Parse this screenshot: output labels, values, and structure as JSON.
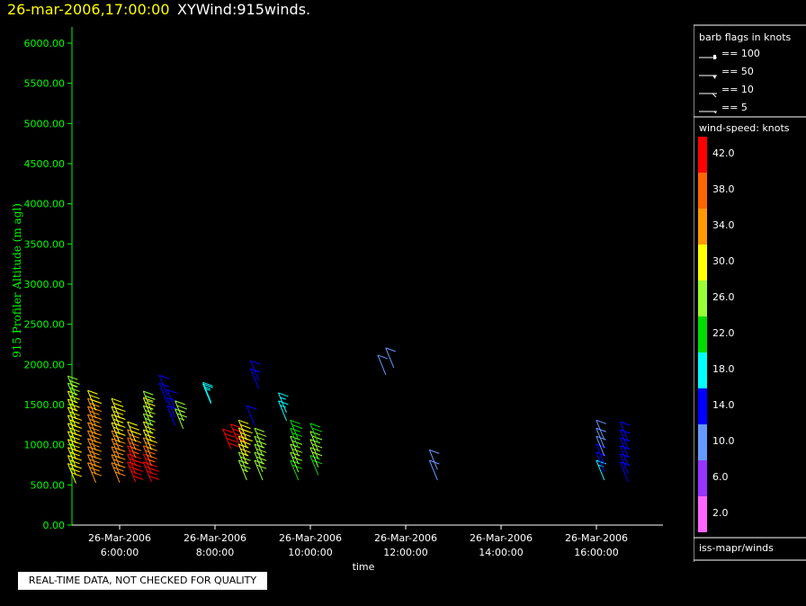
{
  "header": {
    "datetime": "26-mar-2006,17:00:00",
    "product": "XYWind:915winds."
  },
  "note": "REAL-TIME DATA, NOT CHECKED FOR QUALITY",
  "source_label": "iss-mapr/winds",
  "colors": {
    "background": "#000000",
    "axis_text": "#00ff00",
    "title_time": "#ffff00",
    "text": "#ffffff"
  },
  "barb_legend": {
    "title": "barb flags in knots",
    "items": [
      "== 100",
      "== 50",
      "== 10",
      "== 5"
    ]
  },
  "speed_legend": {
    "title": "wind-speed: knots",
    "bins": [
      {
        "label": "42.0",
        "color": "#ff0000"
      },
      {
        "label": "38.0",
        "color": "#ff6600"
      },
      {
        "label": "34.0",
        "color": "#ff9900"
      },
      {
        "label": "30.0",
        "color": "#ffff00"
      },
      {
        "label": "26.0",
        "color": "#99ff33"
      },
      {
        "label": "22.0",
        "color": "#00dd00"
      },
      {
        "label": "18.0",
        "color": "#00ffff"
      },
      {
        "label": "14.0",
        "color": "#0000ff"
      },
      {
        "label": "10.0",
        "color": "#6699ff"
      },
      {
        "label": "6.0",
        "color": "#9933ff"
      },
      {
        "label": "2.0",
        "color": "#ff66ff"
      }
    ]
  },
  "chart_data": {
    "type": "scatter",
    "title": "26-mar-2006,17:00:00  XYWind:915winds.",
    "xlabel": "time",
    "ylabel": "915 Profiler Altitude (m agl)",
    "ylim": [
      0,
      6250
    ],
    "xlim": [
      "26-Mar-2006 5:00:00",
      "26-Mar-2006 17:00:00"
    ],
    "y_ticks": [
      "0.00",
      "500.00",
      "1000.00",
      "1500.00",
      "2000.00",
      "2500.00",
      "3000.00",
      "3500.00",
      "4000.00",
      "4500.00",
      "5000.00",
      "5500.00",
      "6000.00"
    ],
    "x_ticks": [
      {
        "date": "26-Mar-2006",
        "time": "6:00:00"
      },
      {
        "date": "26-Mar-2006",
        "time": "8:00:00"
      },
      {
        "date": "26-Mar-2006",
        "time": "10:00:00"
      },
      {
        "date": "26-Mar-2006",
        "time": "12:00:00"
      },
      {
        "date": "26-Mar-2006",
        "time": "14:00:00"
      },
      {
        "date": "26-Mar-2006",
        "time": "16:00:00"
      }
    ],
    "grid": false,
    "legend": "right",
    "series": [
      {
        "values": [
          {
            "t": "05:05",
            "alt": 520,
            "spd": 31
          },
          {
            "t": "05:05",
            "alt": 620,
            "spd": 31
          },
          {
            "t": "05:05",
            "alt": 720,
            "spd": 31
          },
          {
            "t": "05:05",
            "alt": 820,
            "spd": 31
          },
          {
            "t": "05:05",
            "alt": 920,
            "spd": 30
          },
          {
            "t": "05:05",
            "alt": 1020,
            "spd": 30
          },
          {
            "t": "05:05",
            "alt": 1120,
            "spd": 30
          },
          {
            "t": "05:05",
            "alt": 1220,
            "spd": 30
          },
          {
            "t": "05:05",
            "alt": 1320,
            "spd": 29
          },
          {
            "t": "05:05",
            "alt": 1420,
            "spd": 28
          },
          {
            "t": "05:05",
            "alt": 1520,
            "spd": 27
          },
          {
            "t": "05:05",
            "alt": 1610,
            "spd": 27
          },
          {
            "t": "05:30",
            "alt": 530,
            "spd": 33
          },
          {
            "t": "05:30",
            "alt": 630,
            "spd": 33
          },
          {
            "t": "05:30",
            "alt": 730,
            "spd": 34
          },
          {
            "t": "05:30",
            "alt": 830,
            "spd": 34
          },
          {
            "t": "05:30",
            "alt": 930,
            "spd": 34
          },
          {
            "t": "05:30",
            "alt": 1030,
            "spd": 34
          },
          {
            "t": "05:30",
            "alt": 1130,
            "spd": 33
          },
          {
            "t": "05:30",
            "alt": 1230,
            "spd": 32
          },
          {
            "t": "05:30",
            "alt": 1330,
            "spd": 32
          },
          {
            "t": "05:30",
            "alt": 1430,
            "spd": 31
          },
          {
            "t": "06:00",
            "alt": 530,
            "spd": 32
          },
          {
            "t": "06:00",
            "alt": 630,
            "spd": 32
          },
          {
            "t": "06:00",
            "alt": 730,
            "spd": 33
          },
          {
            "t": "06:00",
            "alt": 830,
            "spd": 33
          },
          {
            "t": "06:00",
            "alt": 930,
            "spd": 32
          },
          {
            "t": "06:00",
            "alt": 1030,
            "spd": 31
          },
          {
            "t": "06:00",
            "alt": 1130,
            "spd": 31
          },
          {
            "t": "06:00",
            "alt": 1230,
            "spd": 30
          },
          {
            "t": "06:00",
            "alt": 1330,
            "spd": 30
          },
          {
            "t": "06:20",
            "alt": 540,
            "spd": 42
          },
          {
            "t": "06:20",
            "alt": 640,
            "spd": 42
          },
          {
            "t": "06:20",
            "alt": 740,
            "spd": 40
          },
          {
            "t": "06:20",
            "alt": 840,
            "spd": 36
          },
          {
            "t": "06:20",
            "alt": 940,
            "spd": 33
          },
          {
            "t": "06:20",
            "alt": 1040,
            "spd": 31
          },
          {
            "t": "06:40",
            "alt": 540,
            "spd": 42
          },
          {
            "t": "06:40",
            "alt": 640,
            "spd": 42
          },
          {
            "t": "06:40",
            "alt": 740,
            "spd": 38
          },
          {
            "t": "06:40",
            "alt": 840,
            "spd": 33
          },
          {
            "t": "06:40",
            "alt": 940,
            "spd": 30
          },
          {
            "t": "06:40",
            "alt": 1040,
            "spd": 28
          },
          {
            "t": "06:40",
            "alt": 1140,
            "spd": 27
          },
          {
            "t": "06:40",
            "alt": 1240,
            "spd": 27
          },
          {
            "t": "06:40",
            "alt": 1340,
            "spd": 28
          },
          {
            "t": "06:40",
            "alt": 1420,
            "spd": 27
          },
          {
            "t": "07:00",
            "alt": 1520,
            "spd": 14
          },
          {
            "t": "07:00",
            "alt": 1620,
            "spd": 14
          },
          {
            "t": "07:10",
            "alt": 1240,
            "spd": 14
          },
          {
            "t": "07:10",
            "alt": 1340,
            "spd": 14
          },
          {
            "t": "07:10",
            "alt": 1440,
            "spd": 14
          },
          {
            "t": "07:20",
            "alt": 1200,
            "spd": 26
          },
          {
            "t": "07:20",
            "alt": 1300,
            "spd": 26
          },
          {
            "t": "07:55",
            "alt": 1510,
            "spd": 18
          },
          {
            "t": "07:55",
            "alt": 1530,
            "spd": 18
          },
          {
            "t": "08:20",
            "alt": 950,
            "spd": 42
          },
          {
            "t": "08:30",
            "alt": 1010,
            "spd": 42
          },
          {
            "t": "08:40",
            "alt": 560,
            "spd": 26
          },
          {
            "t": "08:40",
            "alt": 660,
            "spd": 27
          },
          {
            "t": "08:40",
            "alt": 760,
            "spd": 28
          },
          {
            "t": "08:40",
            "alt": 860,
            "spd": 29
          },
          {
            "t": "08:40",
            "alt": 960,
            "spd": 30
          },
          {
            "t": "08:40",
            "alt": 1060,
            "spd": 30
          },
          {
            "t": "08:50",
            "alt": 1240,
            "spd": 14
          },
          {
            "t": "08:55",
            "alt": 1700,
            "spd": 14
          },
          {
            "t": "08:55",
            "alt": 1800,
            "spd": 14
          },
          {
            "t": "09:00",
            "alt": 560,
            "spd": 24
          },
          {
            "t": "09:00",
            "alt": 660,
            "spd": 25
          },
          {
            "t": "09:00",
            "alt": 760,
            "spd": 25
          },
          {
            "t": "09:00",
            "alt": 860,
            "spd": 25
          },
          {
            "t": "09:00",
            "alt": 960,
            "spd": 24
          },
          {
            "t": "09:30",
            "alt": 1300,
            "spd": 17
          },
          {
            "t": "09:30",
            "alt": 1400,
            "spd": 16
          },
          {
            "t": "09:45",
            "alt": 560,
            "spd": 23
          },
          {
            "t": "09:45",
            "alt": 660,
            "spd": 24
          },
          {
            "t": "09:45",
            "alt": 760,
            "spd": 24
          },
          {
            "t": "09:45",
            "alt": 860,
            "spd": 24
          },
          {
            "t": "09:45",
            "alt": 960,
            "spd": 23
          },
          {
            "t": "09:45",
            "alt": 1060,
            "spd": 23
          },
          {
            "t": "10:10",
            "alt": 620,
            "spd": 23
          },
          {
            "t": "10:10",
            "alt": 720,
            "spd": 24
          },
          {
            "t": "10:10",
            "alt": 820,
            "spd": 24
          },
          {
            "t": "10:10",
            "alt": 920,
            "spd": 24
          },
          {
            "t": "10:10",
            "alt": 1020,
            "spd": 23
          },
          {
            "t": "11:35",
            "alt": 1870,
            "spd": 10
          },
          {
            "t": "11:45",
            "alt": 1960,
            "spd": 10
          },
          {
            "t": "12:40",
            "alt": 560,
            "spd": 10
          },
          {
            "t": "12:40",
            "alt": 690,
            "spd": 10
          },
          {
            "t": "16:10",
            "alt": 560,
            "spd": 17
          },
          {
            "t": "16:10",
            "alt": 660,
            "spd": 14
          },
          {
            "t": "16:10",
            "alt": 760,
            "spd": 12
          },
          {
            "t": "16:10",
            "alt": 860,
            "spd": 11
          },
          {
            "t": "16:10",
            "alt": 960,
            "spd": 11
          },
          {
            "t": "16:10",
            "alt": 1060,
            "spd": 10
          },
          {
            "t": "16:40",
            "alt": 540,
            "spd": 14
          },
          {
            "t": "16:40",
            "alt": 640,
            "spd": 14
          },
          {
            "t": "16:40",
            "alt": 740,
            "spd": 13
          },
          {
            "t": "16:40",
            "alt": 840,
            "spd": 13
          },
          {
            "t": "16:40",
            "alt": 940,
            "spd": 13
          },
          {
            "t": "16:40",
            "alt": 1040,
            "spd": 13
          }
        ]
      }
    ]
  }
}
